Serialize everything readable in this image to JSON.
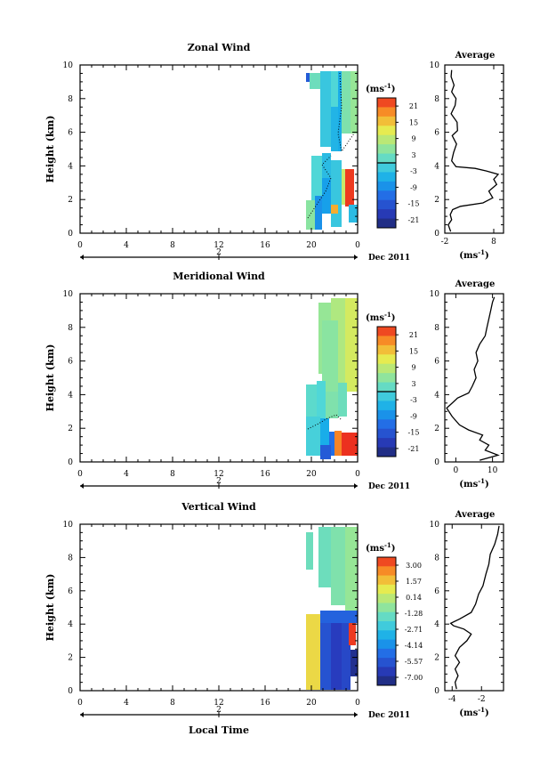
{
  "chart_data": [
    {
      "type": "heatmap",
      "id": "zonal",
      "title": "Zonal Wind",
      "ylabel": "Height (km)",
      "ylim": [
        0,
        10
      ],
      "yticks": [
        "0",
        "2",
        "4",
        "6",
        "8",
        "10"
      ],
      "xlim": [
        0,
        24
      ],
      "xticks": [
        "0",
        "4",
        "8",
        "12",
        "16",
        "20",
        "0"
      ],
      "day_label": "2",
      "date_label": "Dec 2011",
      "colorbar": {
        "unit": "(ms",
        "unit_exp": "-1",
        "unit_close": ")",
        "ticks": [
          "21",
          "15",
          "9",
          "3",
          "-3",
          "-9",
          "-15",
          "-21"
        ],
        "zero_line": true
      },
      "profile": {
        "title": "Average",
        "xlim": [
          -2,
          10
        ],
        "xticks": [
          "-2",
          "8"
        ],
        "xlabel": "(ms",
        "xlabel_exp": "-1",
        "xlabel_close": ")",
        "yticks": [
          "0",
          "2",
          "4",
          "6",
          "8",
          "10"
        ],
        "points": [
          [
            -0.8,
            0.1
          ],
          [
            -1.3,
            0.5
          ],
          [
            -0.6,
            0.8
          ],
          [
            -0.9,
            1.1
          ],
          [
            -0.4,
            1.4
          ],
          [
            1.2,
            1.6
          ],
          [
            5.8,
            1.8
          ],
          [
            7.8,
            2.1
          ],
          [
            7.0,
            2.5
          ],
          [
            8.6,
            2.9
          ],
          [
            8.0,
            3.2
          ],
          [
            8.9,
            3.5
          ],
          [
            6.5,
            3.7
          ],
          [
            4.2,
            3.85
          ],
          [
            0.3,
            3.95
          ],
          [
            -0.6,
            4.3
          ],
          [
            -0.2,
            4.8
          ],
          [
            0.4,
            5.3
          ],
          [
            -0.5,
            5.8
          ],
          [
            0.6,
            6.1
          ],
          [
            0.5,
            6.6
          ],
          [
            -0.7,
            7.1
          ],
          [
            0.1,
            7.6
          ],
          [
            0.3,
            8.0
          ],
          [
            -0.6,
            8.4
          ],
          [
            -0.1,
            8.8
          ],
          [
            -0.7,
            9.3
          ],
          [
            -0.6,
            9.7
          ]
        ]
      }
    },
    {
      "type": "heatmap",
      "id": "meridional",
      "title": "Meridional Wind",
      "ylabel": "Height (km)",
      "ylim": [
        0,
        10
      ],
      "yticks": [
        "0",
        "2",
        "4",
        "6",
        "8",
        "10"
      ],
      "xlim": [
        0,
        24
      ],
      "xticks": [
        "0",
        "4",
        "8",
        "12",
        "16",
        "20",
        "0"
      ],
      "day_label": "2",
      "date_label": "Dec 2011",
      "colorbar": {
        "unit": "(ms",
        "unit_exp": "-1",
        "unit_close": ")",
        "ticks": [
          "21",
          "15",
          "9",
          "3",
          "-3",
          "-9",
          "-15",
          "-21"
        ],
        "zero_line": true
      },
      "profile": {
        "title": "Average",
        "xlim": [
          -3,
          13
        ],
        "xticks": [
          "0",
          "10"
        ],
        "xlabel": "(ms",
        "xlabel_exp": "-1",
        "xlabel_close": ")",
        "yticks": [
          "0",
          "2",
          "4",
          "6",
          "8",
          "10"
        ],
        "points": [
          [
            6.5,
            0.1
          ],
          [
            11.5,
            0.4
          ],
          [
            8.0,
            0.7
          ],
          [
            9.0,
            1.0
          ],
          [
            6.5,
            1.3
          ],
          [
            7.3,
            1.6
          ],
          [
            3.5,
            1.9
          ],
          [
            1.0,
            2.2
          ],
          [
            -1.0,
            2.7
          ],
          [
            -2.5,
            3.2
          ],
          [
            -1.0,
            3.5
          ],
          [
            0.5,
            3.8
          ],
          [
            3.5,
            4.1
          ],
          [
            4.5,
            4.5
          ],
          [
            5.5,
            5.0
          ],
          [
            5.0,
            5.5
          ],
          [
            6.0,
            6.0
          ],
          [
            5.5,
            6.5
          ],
          [
            6.5,
            7.0
          ],
          [
            8.0,
            7.5
          ],
          [
            8.5,
            8.0
          ],
          [
            9.0,
            8.5
          ],
          [
            9.5,
            9.0
          ],
          [
            10.0,
            9.5
          ],
          [
            10.5,
            9.8
          ]
        ]
      }
    },
    {
      "type": "heatmap",
      "id": "vertical",
      "title": "Vertical Wind",
      "ylabel": "Height (km)",
      "ylim": [
        0,
        10
      ],
      "yticks": [
        "0",
        "2",
        "4",
        "6",
        "8",
        "10"
      ],
      "xlim": [
        0,
        24
      ],
      "xticks": [
        "0",
        "4",
        "8",
        "12",
        "16",
        "20",
        "0"
      ],
      "day_label": "2",
      "date_label": "Dec 2011",
      "xlabel": "Local Time",
      "colorbar": {
        "unit": "(ms",
        "unit_exp": "-1",
        "unit_close": ")",
        "ticks": [
          "3.00",
          "1.57",
          "0.14",
          "-1.28",
          "-2.71",
          "-4.14",
          "-5.57",
          "-7.00"
        ],
        "zero_line": false
      },
      "profile": {
        "title": "Average",
        "xlim": [
          -4.5,
          -0.5
        ],
        "xticks": [
          "-4",
          "-2"
        ],
        "xlabel": "(ms",
        "xlabel_exp": "-1",
        "xlabel_close": ")",
        "yticks": [
          "0",
          "2",
          "4",
          "6",
          "8",
          "10"
        ],
        "points": [
          [
            -3.7,
            0.1
          ],
          [
            -3.8,
            0.5
          ],
          [
            -3.6,
            0.9
          ],
          [
            -3.8,
            1.3
          ],
          [
            -3.5,
            1.7
          ],
          [
            -3.8,
            2.1
          ],
          [
            -3.5,
            2.6
          ],
          [
            -3.0,
            3.0
          ],
          [
            -2.7,
            3.4
          ],
          [
            -3.2,
            3.7
          ],
          [
            -3.9,
            3.9
          ],
          [
            -4.1,
            4.05
          ],
          [
            -3.5,
            4.3
          ],
          [
            -2.7,
            4.7
          ],
          [
            -2.4,
            5.2
          ],
          [
            -2.2,
            5.8
          ],
          [
            -1.9,
            6.3
          ],
          [
            -1.7,
            7.0
          ],
          [
            -1.5,
            7.6
          ],
          [
            -1.4,
            8.2
          ],
          [
            -1.1,
            8.8
          ],
          [
            -0.9,
            9.4
          ],
          [
            -0.8,
            9.9
          ]
        ]
      }
    }
  ]
}
